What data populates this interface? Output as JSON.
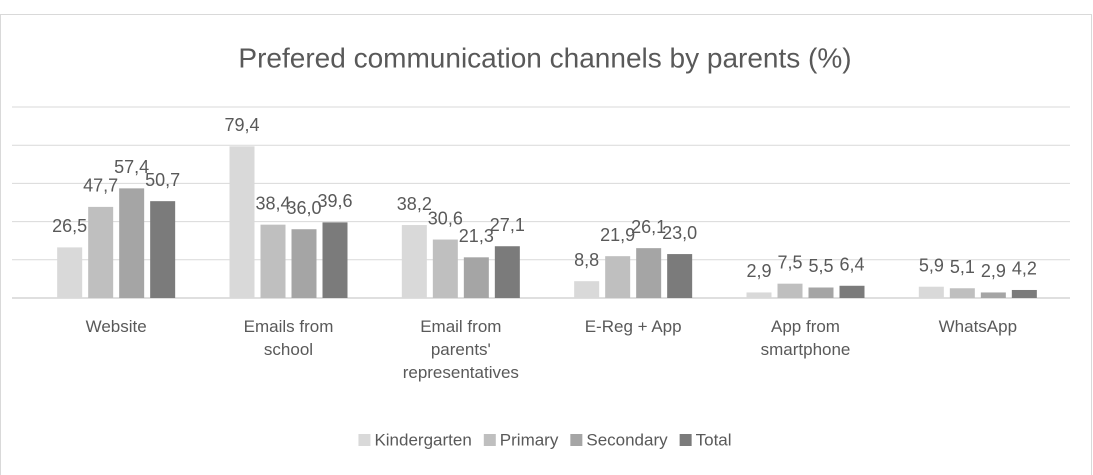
{
  "chart_data": {
    "type": "bar",
    "title": "Prefered communication channels by parents (%)",
    "categories": [
      "Website",
      "Emails from school",
      "Email from parents' representatives",
      "E-Reg + App",
      "App from smartphone",
      "WhatsApp"
    ],
    "series": [
      {
        "name": "Kindergarten",
        "color": "#d9d9d9",
        "values": [
          26.5,
          79.4,
          38.2,
          8.8,
          2.9,
          5.9
        ],
        "value_labels": [
          "26,5",
          "79,4",
          "38,2",
          "8,8",
          "2,9",
          "5,9"
        ]
      },
      {
        "name": "Primary",
        "color": "#bfbfbf",
        "values": [
          47.7,
          38.4,
          30.6,
          21.9,
          7.5,
          5.1
        ],
        "value_labels": [
          "47,7",
          "38,4",
          "30,6",
          "21,9",
          "7,5",
          "5,1"
        ]
      },
      {
        "name": "Secondary",
        "color": "#a5a5a5",
        "values": [
          57.4,
          36.0,
          21.3,
          26.1,
          5.5,
          2.9
        ],
        "value_labels": [
          "57,4",
          "36,0",
          "21,3",
          "26,1",
          "5,5",
          "2,9"
        ]
      },
      {
        "name": "Total",
        "color": "#7b7b7b",
        "values": [
          50.7,
          39.6,
          27.1,
          23.0,
          6.4,
          4.2
        ],
        "value_labels": [
          "50,7",
          "39,6",
          "27,1",
          "23,0",
          "6,4",
          "4,2"
        ]
      }
    ],
    "ylim": [
      0,
      100
    ],
    "yticks": [
      0,
      20,
      40,
      60,
      80,
      100
    ],
    "grid": true,
    "ytick_labels": false,
    "legend": "bottom"
  }
}
